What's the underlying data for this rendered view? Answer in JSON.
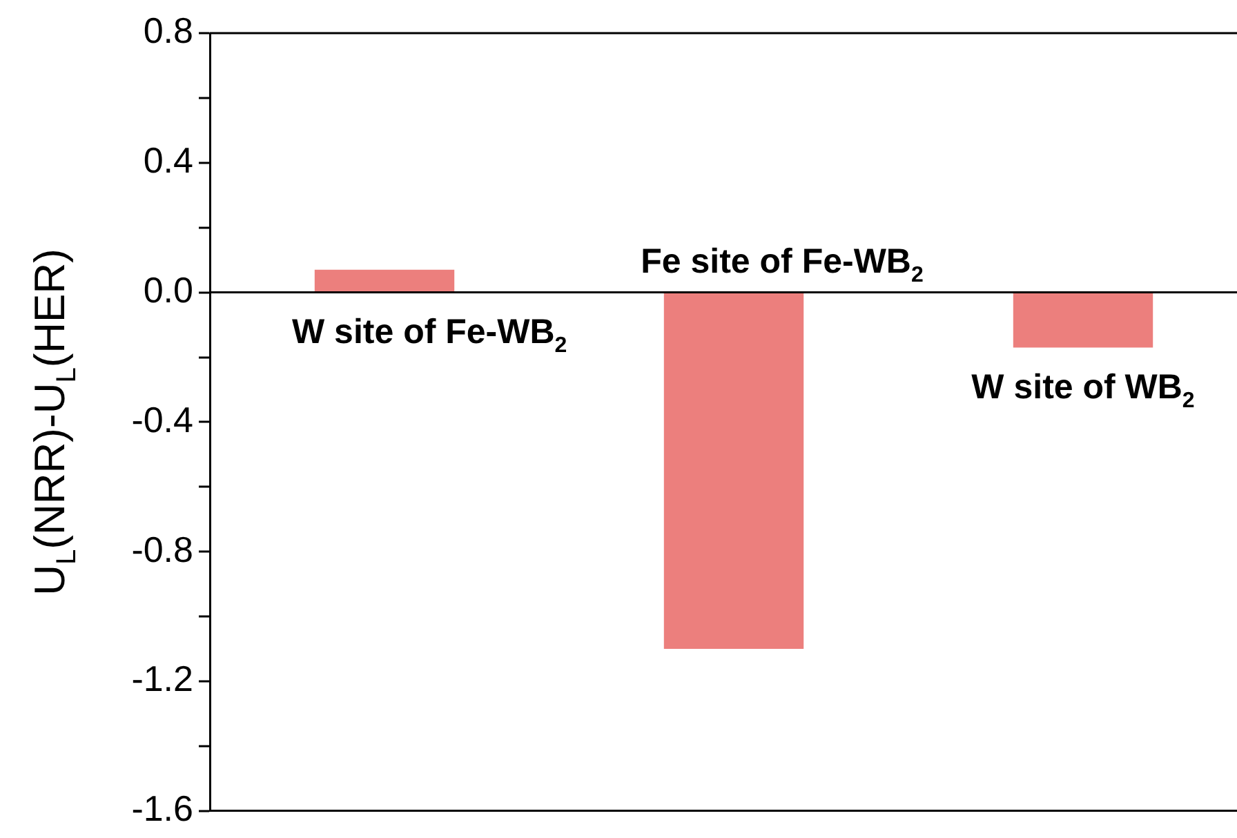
{
  "chart_data": {
    "type": "bar",
    "ylabel": "U$_{L}$(NRR)-U$_{L}$(HER)",
    "categories": [
      "W site of Fe-WB$_{2}$",
      "Fe site of Fe-WB$_{2}$",
      "W site of WB$_{2}$"
    ],
    "values": [
      0.07,
      -1.1,
      -0.17
    ],
    "color": "#ec7f7d",
    "ylim": [
      -1.6,
      0.8
    ],
    "yticks": [
      -1.6,
      {
        "value": -1.4,
        "label": null
      },
      -1.2,
      {
        "value": -1.0,
        "label": null
      },
      -0.8,
      {
        "value": -0.6,
        "label": null
      },
      -0.4,
      {
        "value": -0.2,
        "label": null
      },
      {
        "value": 0,
        "label": "0.0"
      },
      {
        "value": 0.2,
        "label": null
      },
      0.4,
      {
        "value": 0.6,
        "label": null
      },
      0.8
    ],
    "ref_lines": [
      {
        "axis": "y",
        "value": 0,
        "color": "#000000"
      }
    ],
    "grid": false,
    "legend": false
  }
}
